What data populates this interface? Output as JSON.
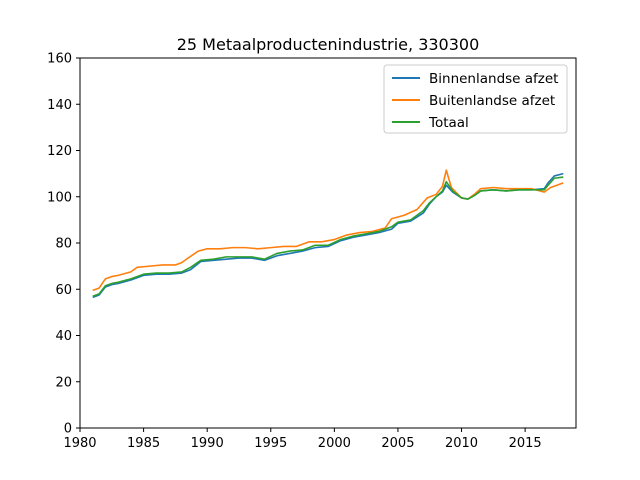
{
  "chart_data": {
    "type": "line",
    "title": "25 Metaalproductenindustrie, 330300",
    "xlabel": "",
    "ylabel": "",
    "xlim": [
      1980,
      2019
    ],
    "ylim": [
      0,
      160
    ],
    "xticks": [
      1980,
      1985,
      1990,
      1995,
      2000,
      2005,
      2010,
      2015
    ],
    "yticks": [
      0,
      20,
      40,
      60,
      80,
      100,
      120,
      140,
      160
    ],
    "grid": false,
    "legend_position": "top-right",
    "series": [
      {
        "name": "Binnenlandse afzet",
        "color": "#1f77b4",
        "points": [
          [
            1981.0,
            56.5
          ],
          [
            1981.5,
            57.5
          ],
          [
            1982.0,
            61.0
          ],
          [
            1982.5,
            62.0
          ],
          [
            1983.0,
            62.5
          ],
          [
            1984.0,
            64.0
          ],
          [
            1985.0,
            66.0
          ],
          [
            1986.0,
            66.5
          ],
          [
            1987.0,
            66.5
          ],
          [
            1988.0,
            67.0
          ],
          [
            1988.7,
            68.5
          ],
          [
            1989.5,
            72.0
          ],
          [
            1990.5,
            72.5
          ],
          [
            1991.5,
            73.0
          ],
          [
            1992.5,
            73.5
          ],
          [
            1993.5,
            73.5
          ],
          [
            1994.5,
            72.5
          ],
          [
            1995.5,
            74.5
          ],
          [
            1996.5,
            75.5
          ],
          [
            1997.5,
            76.5
          ],
          [
            1998.5,
            78.0
          ],
          [
            1999.5,
            78.5
          ],
          [
            2000.5,
            81.0
          ],
          [
            2001.5,
            82.5
          ],
          [
            2002.5,
            83.5
          ],
          [
            2003.5,
            84.5
          ],
          [
            2004.5,
            86.0
          ],
          [
            2005.0,
            88.5
          ],
          [
            2006.0,
            89.5
          ],
          [
            2007.0,
            93.0
          ],
          [
            2007.5,
            97.0
          ],
          [
            2008.0,
            100.0
          ],
          [
            2008.5,
            102.0
          ],
          [
            2008.8,
            105.0
          ],
          [
            2009.3,
            102.0
          ],
          [
            2010.0,
            99.5
          ],
          [
            2010.5,
            99.0
          ],
          [
            2011.0,
            100.5
          ],
          [
            2011.5,
            102.5
          ],
          [
            2012.5,
            103.0
          ],
          [
            2013.5,
            102.5
          ],
          [
            2014.5,
            103.0
          ],
          [
            2015.5,
            103.0
          ],
          [
            2016.5,
            103.5
          ],
          [
            2016.8,
            106.0
          ],
          [
            2017.3,
            109.0
          ],
          [
            2018.0,
            110.0
          ]
        ]
      },
      {
        "name": "Buitenlandse afzet",
        "color": "#ff7f0e",
        "points": [
          [
            1981.0,
            59.5
          ],
          [
            1981.5,
            60.5
          ],
          [
            1982.0,
            64.5
          ],
          [
            1982.5,
            65.5
          ],
          [
            1983.0,
            66.0
          ],
          [
            1984.0,
            67.5
          ],
          [
            1984.5,
            69.5
          ],
          [
            1985.5,
            70.0
          ],
          [
            1986.5,
            70.5
          ],
          [
            1987.5,
            70.5
          ],
          [
            1988.0,
            71.5
          ],
          [
            1988.5,
            73.5
          ],
          [
            1989.3,
            76.5
          ],
          [
            1990.0,
            77.5
          ],
          [
            1991.0,
            77.5
          ],
          [
            1992.0,
            78.0
          ],
          [
            1993.0,
            78.0
          ],
          [
            1994.0,
            77.5
          ],
          [
            1995.0,
            78.0
          ],
          [
            1996.0,
            78.5
          ],
          [
            1997.0,
            78.5
          ],
          [
            1998.0,
            80.5
          ],
          [
            1999.0,
            80.5
          ],
          [
            2000.0,
            81.5
          ],
          [
            2001.0,
            83.5
          ],
          [
            2002.0,
            84.5
          ],
          [
            2003.0,
            85.0
          ],
          [
            2004.0,
            86.5
          ],
          [
            2004.5,
            90.5
          ],
          [
            2005.5,
            92.0
          ],
          [
            2006.5,
            94.5
          ],
          [
            2007.3,
            99.5
          ],
          [
            2008.0,
            101.0
          ],
          [
            2008.5,
            104.5
          ],
          [
            2008.8,
            111.5
          ],
          [
            2009.2,
            104.0
          ],
          [
            2010.0,
            99.5
          ],
          [
            2010.5,
            99.0
          ],
          [
            2011.0,
            101.0
          ],
          [
            2011.5,
            103.5
          ],
          [
            2012.5,
            104.0
          ],
          [
            2013.5,
            103.5
          ],
          [
            2014.5,
            103.5
          ],
          [
            2015.5,
            103.5
          ],
          [
            2016.5,
            102.0
          ],
          [
            2017.0,
            104.0
          ],
          [
            2017.5,
            105.0
          ],
          [
            2018.0,
            106.0
          ]
        ]
      },
      {
        "name": "Totaal",
        "color": "#2ca02c",
        "points": [
          [
            1981.0,
            57.0
          ],
          [
            1981.5,
            58.0
          ],
          [
            1982.0,
            61.5
          ],
          [
            1982.5,
            62.5
          ],
          [
            1983.0,
            63.0
          ],
          [
            1984.0,
            64.5
          ],
          [
            1985.0,
            66.5
          ],
          [
            1986.0,
            67.0
          ],
          [
            1987.0,
            67.0
          ],
          [
            1988.0,
            67.5
          ],
          [
            1988.7,
            69.5
          ],
          [
            1989.5,
            72.5
          ],
          [
            1990.5,
            73.0
          ],
          [
            1991.5,
            74.0
          ],
          [
            1992.5,
            74.0
          ],
          [
            1993.5,
            74.0
          ],
          [
            1994.5,
            73.0
          ],
          [
            1995.5,
            75.5
          ],
          [
            1996.5,
            76.5
          ],
          [
            1997.5,
            77.0
          ],
          [
            1998.5,
            79.0
          ],
          [
            1999.5,
            79.0
          ],
          [
            2000.5,
            81.5
          ],
          [
            2001.5,
            83.0
          ],
          [
            2002.5,
            84.0
          ],
          [
            2003.5,
            85.0
          ],
          [
            2004.5,
            87.0
          ],
          [
            2005.0,
            89.0
          ],
          [
            2006.0,
            90.0
          ],
          [
            2007.0,
            94.0
          ],
          [
            2007.5,
            97.5
          ],
          [
            2008.0,
            100.0
          ],
          [
            2008.5,
            102.5
          ],
          [
            2008.8,
            106.5
          ],
          [
            2009.3,
            102.5
          ],
          [
            2010.0,
            99.5
          ],
          [
            2010.5,
            99.0
          ],
          [
            2011.0,
            100.5
          ],
          [
            2011.5,
            102.5
          ],
          [
            2012.5,
            103.0
          ],
          [
            2013.5,
            102.5
          ],
          [
            2014.5,
            103.0
          ],
          [
            2015.5,
            103.0
          ],
          [
            2016.5,
            103.0
          ],
          [
            2016.8,
            105.0
          ],
          [
            2017.3,
            108.0
          ],
          [
            2018.0,
            108.5
          ]
        ]
      }
    ]
  }
}
